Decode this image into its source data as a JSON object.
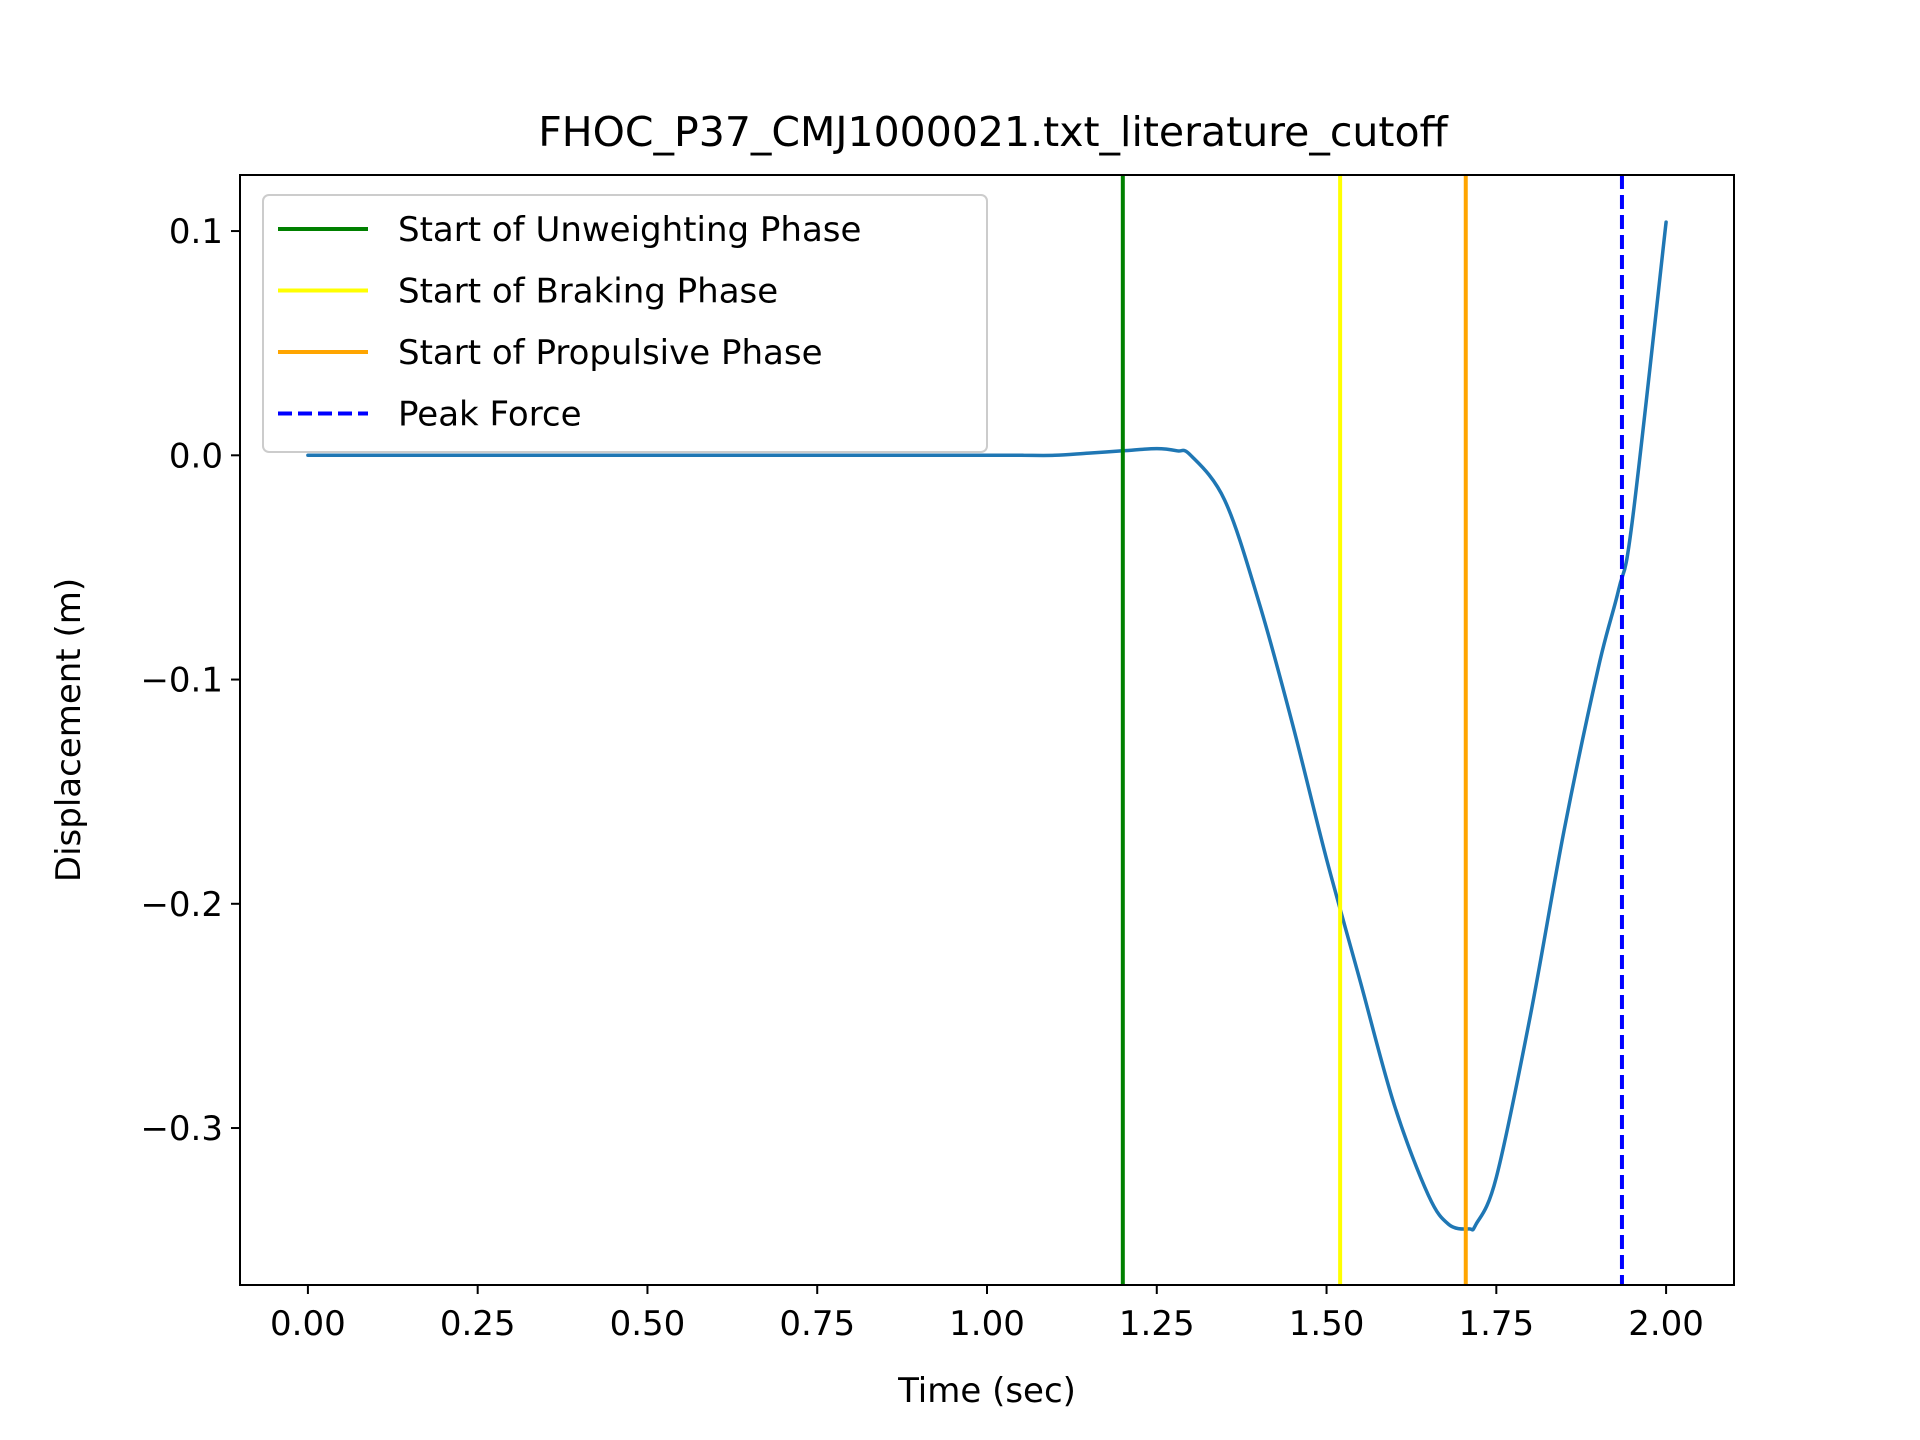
{
  "chart_data": {
    "type": "line",
    "title": "FHOC_P37_CMJ1000021.txt_literature_cutoff",
    "xlabel": "Time (sec)",
    "ylabel": "Displacement (m)",
    "xlim": [
      -0.1,
      2.1
    ],
    "ylim": [
      -0.37,
      0.125
    ],
    "xticks": [
      0.0,
      0.25,
      0.5,
      0.75,
      1.0,
      1.25,
      1.5,
      1.75,
      2.0
    ],
    "xtick_labels": [
      "0.00",
      "0.25",
      "0.50",
      "0.75",
      "1.00",
      "1.25",
      "1.50",
      "1.75",
      "2.00"
    ],
    "yticks": [
      0.1,
      0.0,
      -0.1,
      -0.2,
      -0.3
    ],
    "ytick_labels": [
      "0.1",
      "0.0",
      "−0.1",
      "−0.2",
      "−0.3"
    ],
    "grid": false,
    "legend_position": "top-left",
    "series": [
      {
        "color": "#1f77b4",
        "x": [
          0.0,
          0.5,
          1.0,
          1.05,
          1.1,
          1.15,
          1.2,
          1.25,
          1.28,
          1.3,
          1.35,
          1.4,
          1.45,
          1.5,
          1.55,
          1.6,
          1.65,
          1.68,
          1.71,
          1.72,
          1.75,
          1.8,
          1.85,
          1.9,
          1.93,
          1.95,
          2.0
        ],
        "y": [
          0.0,
          0.0,
          0.0,
          0.0,
          0.0,
          0.001,
          0.002,
          0.003,
          0.002,
          0.0,
          -0.02,
          -0.065,
          -0.12,
          -0.18,
          -0.235,
          -0.29,
          -0.33,
          -0.343,
          -0.345,
          -0.343,
          -0.322,
          -0.25,
          -0.167,
          -0.095,
          -0.06,
          -0.03,
          0.104
        ]
      }
    ],
    "vlines": [
      {
        "label": "Start of Unweighting Phase",
        "x": 1.2,
        "color": "#008000",
        "style": "solid"
      },
      {
        "label": "Start of Braking Phase",
        "x": 1.52,
        "color": "#ffff00",
        "style": "solid"
      },
      {
        "label": "Start of Propulsive Phase",
        "x": 1.705,
        "color": "#ffa500",
        "style": "solid"
      },
      {
        "label": "Peak Force",
        "x": 1.935,
        "color": "#0000ff",
        "style": "dashed"
      }
    ]
  }
}
